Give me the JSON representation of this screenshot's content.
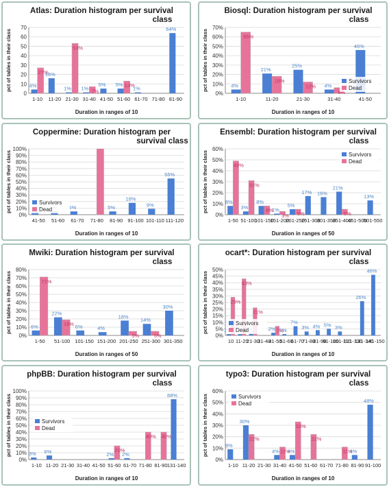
{
  "colors": {
    "survivors": "#4a7fd4",
    "dead": "#e8739a",
    "dead_label": "#c0335f",
    "surv_label": "#4f86c6",
    "grid": "#d9d9d9",
    "axis": "#888888",
    "frame": "#a8c2b6"
  },
  "legend": {
    "survivors": "Survivors",
    "dead": "Dead"
  },
  "axis": {
    "ylabel": "pct of tables in their class"
  },
  "chart_data": [
    {
      "type": "bar",
      "title": "Atlas: Duration histogram per survival class",
      "xlabel": "Duration in ranges of 10",
      "ylabel": "pct of tables in their class",
      "ylim": [
        0,
        70
      ],
      "ytick_step": 10,
      "ytick_format": "plain",
      "legend_position": "none",
      "categories": [
        "1-10",
        "11-20",
        "21-30",
        "31-40",
        "41-50",
        "51-60",
        "61-70",
        "71-80",
        "81-90"
      ],
      "series": [
        {
          "name": "Survivors",
          "values": [
            4,
            16,
            1,
            1,
            5,
            5,
            1,
            null,
            64
          ],
          "labels": [
            "4%",
            "16%",
            "1%",
            "1%",
            "5%",
            "5%",
            "1%",
            "",
            "64%"
          ]
        },
        {
          "name": "Dead",
          "values": [
            27,
            null,
            53,
            7,
            null,
            13,
            null,
            null,
            null
          ],
          "labels": [
            "27%",
            "",
            "53%",
            "7%",
            "",
            "13%",
            "",
            "",
            ""
          ]
        }
      ]
    },
    {
      "type": "bar",
      "title": "Biosql: Duration histogram per survival class",
      "xlabel": "Duration in ranges of 10",
      "ylabel": "pct of tables in their class",
      "ylim": [
        0,
        70
      ],
      "ytick_step": 10,
      "ytick_format": "percent",
      "legend_position": "bottom-right",
      "categories": [
        "1-10",
        "11-20",
        "21-30",
        "31-40",
        "41-50"
      ],
      "series": [
        {
          "name": "Survivors",
          "values": [
            4,
            21,
            25,
            4,
            46
          ],
          "labels": [
            "4%",
            "21%",
            "25%",
            "4%",
            "46%"
          ]
        },
        {
          "name": "Dead",
          "values": [
            65,
            18,
            12,
            6,
            null
          ],
          "labels": [
            "65%",
            "18%",
            "12%",
            "6%",
            ""
          ]
        }
      ]
    },
    {
      "type": "bar",
      "title": "Coppermine: Duration histogram per survival class",
      "xlabel": "Duration in ranges of 10",
      "ylabel": "pct of tables in their class",
      "ylim": [
        0,
        100
      ],
      "ytick_step": 10,
      "ytick_format": "percent",
      "legend_position": "bottom-left",
      "categories": [
        "51-60",
        "61-70",
        "71-80",
        "81-90",
        "91-100",
        "101-110",
        "111-120"
      ],
      "series": [
        {
          "name": "Survivors",
          "values": [
            5,
            5,
            null,
            5,
            18,
            9,
            55
          ],
          "labels": [
            "5%",
            "5%",
            "",
            "5%",
            "18%",
            "9%",
            "55%"
          ]
        },
        {
          "name": "Dead",
          "values": [
            null,
            null,
            100,
            null,
            null,
            null,
            null
          ],
          "labels": [
            "",
            "",
            "",
            "",
            "",
            "",
            ""
          ]
        }
      ],
      "extra_categories_left": [
        "41-50"
      ],
      "extra_labels_left": [
        "5%"
      ]
    },
    {
      "type": "bar",
      "title": "Ensembl: Duration histogram per survival class",
      "xlabel": "Duration in ranges of 50",
      "ylabel": "pct of tables in their class",
      "ylim": [
        0,
        60
      ],
      "ytick_step": 10,
      "ytick_format": "percent",
      "legend_position": "top-right",
      "categories": [
        "1-50",
        "51-100",
        "101-150",
        "151-200",
        "201-250",
        "251-300",
        "301-350",
        "351-400",
        "451-500",
        "501-550"
      ],
      "series": [
        {
          "name": "Survivors",
          "values": [
            8,
            3,
            8,
            1,
            5,
            17,
            16,
            21,
            null,
            13
          ],
          "labels": [
            "8%",
            "3%",
            "8%",
            "1%",
            "5%",
            "17%",
            "16%",
            "21%",
            "",
            "13%"
          ]
        },
        {
          "name": "Dead",
          "values": [
            49,
            31,
            8,
            3,
            5,
            null,
            null,
            5,
            null,
            null
          ],
          "labels": [
            "49%",
            "31%",
            "8%",
            "3%",
            "5%",
            "",
            "",
            "5%",
            "",
            ""
          ]
        }
      ]
    },
    {
      "type": "bar",
      "title": "Mwiki: Duration histogram per survival class",
      "xlabel": "Duration in ranges of 50",
      "ylabel": "pct of tables in their class",
      "ylim": [
        0,
        80
      ],
      "ytick_step": 10,
      "ytick_format": "percent",
      "legend_position": "none",
      "categories": [
        "1-50",
        "51-100",
        "101-150",
        "151-200",
        "201-250",
        "251-300",
        "301-350"
      ],
      "series": [
        {
          "name": "Survivors",
          "values": [
            6,
            22,
            6,
            4,
            18,
            14,
            30
          ],
          "labels": [
            "6%",
            "22%",
            "6%",
            "4%",
            "18%",
            "14%",
            "30%"
          ]
        },
        {
          "name": "Dead",
          "values": [
            71,
            19,
            null,
            null,
            5,
            5,
            null
          ],
          "labels": [
            "71%",
            "19%",
            "",
            "",
            "5%",
            "5%",
            ""
          ]
        }
      ]
    },
    {
      "type": "bar",
      "title": "ocart*: Duration histogram per survival class",
      "xlabel": "Duration in ranges of 10",
      "ylabel": "pct of tables in their class",
      "ylim": [
        0,
        50
      ],
      "ytick_step": 5,
      "ytick_format": "percent",
      "legend_position": "bottom-left",
      "categories": [
        "1-10",
        "11-20",
        "21-30",
        "31-40",
        "41-50",
        "51-60",
        "61-70",
        "71-80",
        "81-90",
        "91-100",
        "101-110",
        "121-130",
        "131-140",
        "141-150"
      ],
      "tick_texts": [
        "10",
        "11-20",
        "21-30",
        "31-40",
        "41-50",
        "51-60",
        "61-70",
        "71-80",
        "81-90",
        "91-100",
        "101-110",
        "121-130",
        "131-140",
        "141-150"
      ],
      "series": [
        {
          "name": "Survivors",
          "values": [
            1,
            1,
            2,
            null,
            2,
            1,
            7,
            3,
            4,
            5,
            3,
            null,
            26,
            46
          ],
          "labels": [
            "1%",
            "1%",
            "2%",
            "",
            "2%",
            "1%",
            "7%",
            "3%",
            "4%",
            "5%",
            "3%",
            "",
            "26%",
            "46%"
          ]
        },
        {
          "name": "Dead",
          "values": [
            29,
            43,
            21,
            null,
            7,
            null,
            null,
            null,
            null,
            null,
            null,
            null,
            null,
            null
          ],
          "labels": [
            "29%",
            "43%",
            "21%",
            "",
            "7%",
            "",
            "",
            "",
            "",
            "",
            "",
            "",
            "",
            ""
          ]
        }
      ]
    },
    {
      "type": "bar",
      "title": "phpBB: Duration histogram per survival class",
      "xlabel": "Duration in ranges of 10",
      "ylabel": "pct of tables in their class",
      "ylim": [
        0,
        100
      ],
      "ytick_step": 10,
      "ytick_format": "percent",
      "legend_position": "middle-left",
      "categories": [
        "1-10",
        "11-20",
        "21-30",
        "31-40",
        "41-50",
        "51-60",
        "61-70",
        "71-80",
        "81-90",
        "131-140"
      ],
      "series": [
        {
          "name": "Survivors",
          "values": [
            3,
            6,
            null,
            null,
            null,
            2,
            2,
            null,
            null,
            88
          ],
          "labels": [
            "3%",
            "6%",
            "",
            "",
            "",
            "2%",
            "2%",
            "",
            "",
            "88%"
          ]
        },
        {
          "name": "Dead",
          "values": [
            null,
            null,
            null,
            null,
            null,
            20,
            null,
            40,
            40,
            null
          ],
          "labels": [
            "",
            "",
            "",
            "",
            "",
            "20%",
            "",
            "40%",
            "40%",
            ""
          ]
        }
      ]
    },
    {
      "type": "bar",
      "title": "typo3: Duration histogram per survival class",
      "xlabel": "Duration in ranges of 10",
      "ylabel": "pct of tables in their class",
      "ylim": [
        0,
        60
      ],
      "ytick_step": 10,
      "ytick_format": "percent",
      "legend_position": "top-left",
      "categories": [
        "1-10",
        "11-20",
        "21-30",
        "31-40",
        "41-50",
        "51-60",
        "61-70",
        "71-80",
        "81-90",
        "91-100"
      ],
      "series": [
        {
          "name": "Survivors",
          "values": [
            9,
            30,
            null,
            4,
            4,
            null,
            null,
            null,
            4,
            48
          ],
          "labels": [
            "9%",
            "30%",
            "",
            "4%",
            "4%",
            "",
            "",
            "",
            "4%",
            "48%"
          ]
        },
        {
          "name": "Dead",
          "values": [
            null,
            22,
            null,
            11,
            33,
            22,
            null,
            11,
            null,
            null
          ],
          "labels": [
            "",
            "22%",
            "",
            "11%",
            "33%",
            "22%",
            "",
            "11%",
            "",
            ""
          ]
        }
      ]
    }
  ]
}
